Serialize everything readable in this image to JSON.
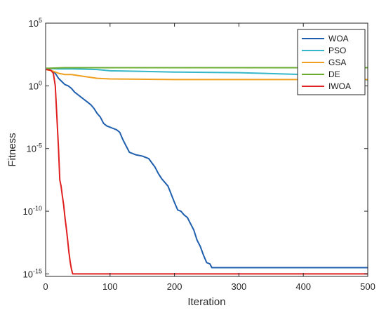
{
  "chart_data": {
    "type": "line",
    "title": "",
    "xlabel": "Iteration",
    "ylabel": "Fitness",
    "xlim": [
      0,
      500
    ],
    "ylim_log10": [
      -15.2,
      5
    ],
    "y_scale": "log",
    "grid": false,
    "legend_position": "top-right",
    "x_ticks": [
      {
        "value": 0,
        "label": "0"
      },
      {
        "value": 100,
        "label": "100"
      },
      {
        "value": 200,
        "label": "200"
      },
      {
        "value": 300,
        "label": "300"
      },
      {
        "value": 400,
        "label": "400"
      },
      {
        "value": 500,
        "label": "500"
      }
    ],
    "y_ticks": [
      {
        "exp": 5,
        "base": "10",
        "sup": "5"
      },
      {
        "exp": 0,
        "base": "10",
        "sup": "0"
      },
      {
        "exp": -5,
        "base": "10",
        "sup": "-5"
      },
      {
        "exp": -10,
        "base": "10",
        "sup": "-10"
      },
      {
        "exp": -15,
        "base": "10",
        "sup": "-15"
      }
    ],
    "series": [
      {
        "name": "WOA",
        "color": "#1f5fae",
        "points": [
          [
            1,
            1.3
          ],
          [
            5,
            1.28
          ],
          [
            10,
            1.2
          ],
          [
            15,
            1.0
          ],
          [
            20,
            0.6
          ],
          [
            25,
            0.35
          ],
          [
            30,
            0.1
          ],
          [
            35,
            0.0
          ],
          [
            40,
            -0.2
          ],
          [
            45,
            -0.5
          ],
          [
            50,
            -0.7
          ],
          [
            55,
            -0.9
          ],
          [
            60,
            -1.1
          ],
          [
            65,
            -1.3
          ],
          [
            70,
            -1.5
          ],
          [
            75,
            -1.8
          ],
          [
            80,
            -2.2
          ],
          [
            85,
            -2.5
          ],
          [
            90,
            -3.0
          ],
          [
            95,
            -3.2
          ],
          [
            100,
            -3.3
          ],
          [
            105,
            -3.4
          ],
          [
            110,
            -3.5
          ],
          [
            115,
            -3.7
          ],
          [
            120,
            -4.3
          ],
          [
            125,
            -4.8
          ],
          [
            130,
            -5.3
          ],
          [
            135,
            -5.4
          ],
          [
            140,
            -5.5
          ],
          [
            150,
            -5.6
          ],
          [
            160,
            -5.8
          ],
          [
            170,
            -6.5
          ],
          [
            175,
            -7.0
          ],
          [
            180,
            -7.4
          ],
          [
            190,
            -8.0
          ],
          [
            200,
            -9.3
          ],
          [
            205,
            -9.9
          ],
          [
            210,
            -10.0
          ],
          [
            215,
            -10.3
          ],
          [
            220,
            -10.5
          ],
          [
            225,
            -11.0
          ],
          [
            230,
            -11.5
          ],
          [
            235,
            -12.3
          ],
          [
            240,
            -12.8
          ],
          [
            245,
            -13.5
          ],
          [
            250,
            -14.1
          ],
          [
            255,
            -14.2
          ],
          [
            258,
            -14.5
          ],
          [
            500,
            -14.5
          ]
        ]
      },
      {
        "name": "PSO",
        "color": "#35b7c9",
        "points": [
          [
            1,
            1.4
          ],
          [
            20,
            1.35
          ],
          [
            40,
            1.35
          ],
          [
            60,
            1.33
          ],
          [
            80,
            1.3
          ],
          [
            100,
            1.2
          ],
          [
            150,
            1.15
          ],
          [
            200,
            1.1
          ],
          [
            300,
            1.05
          ],
          [
            400,
            0.9
          ],
          [
            450,
            0.75
          ],
          [
            480,
            0.72
          ],
          [
            490,
            0.6
          ],
          [
            500,
            0.45
          ]
        ]
      },
      {
        "name": "GSA",
        "color": "#f0a020",
        "points": [
          [
            1,
            1.3
          ],
          [
            10,
            1.2
          ],
          [
            20,
            1.0
          ],
          [
            30,
            0.9
          ],
          [
            40,
            0.9
          ],
          [
            60,
            0.75
          ],
          [
            80,
            0.6
          ],
          [
            100,
            0.55
          ],
          [
            200,
            0.5
          ],
          [
            300,
            0.5
          ],
          [
            400,
            0.5
          ],
          [
            500,
            0.5
          ]
        ]
      },
      {
        "name": "DE",
        "color": "#6aac2f",
        "points": [
          [
            1,
            1.4
          ],
          [
            30,
            1.45
          ],
          [
            100,
            1.45
          ],
          [
            300,
            1.45
          ],
          [
            500,
            1.45
          ]
        ]
      },
      {
        "name": "IWOA",
        "color": "#e02020",
        "points": [
          [
            1,
            1.3
          ],
          [
            8,
            1.25
          ],
          [
            12,
            1.0
          ],
          [
            15,
            0.0
          ],
          [
            17,
            -2.0
          ],
          [
            20,
            -5.0
          ],
          [
            22,
            -7.5
          ],
          [
            24,
            -8.0
          ],
          [
            26,
            -8.8
          ],
          [
            28,
            -9.5
          ],
          [
            30,
            -10.5
          ],
          [
            32,
            -11.3
          ],
          [
            34,
            -12.2
          ],
          [
            36,
            -13.2
          ],
          [
            38,
            -14.0
          ],
          [
            40,
            -14.6
          ],
          [
            42,
            -15.0
          ],
          [
            500,
            -15.0
          ]
        ]
      }
    ]
  }
}
